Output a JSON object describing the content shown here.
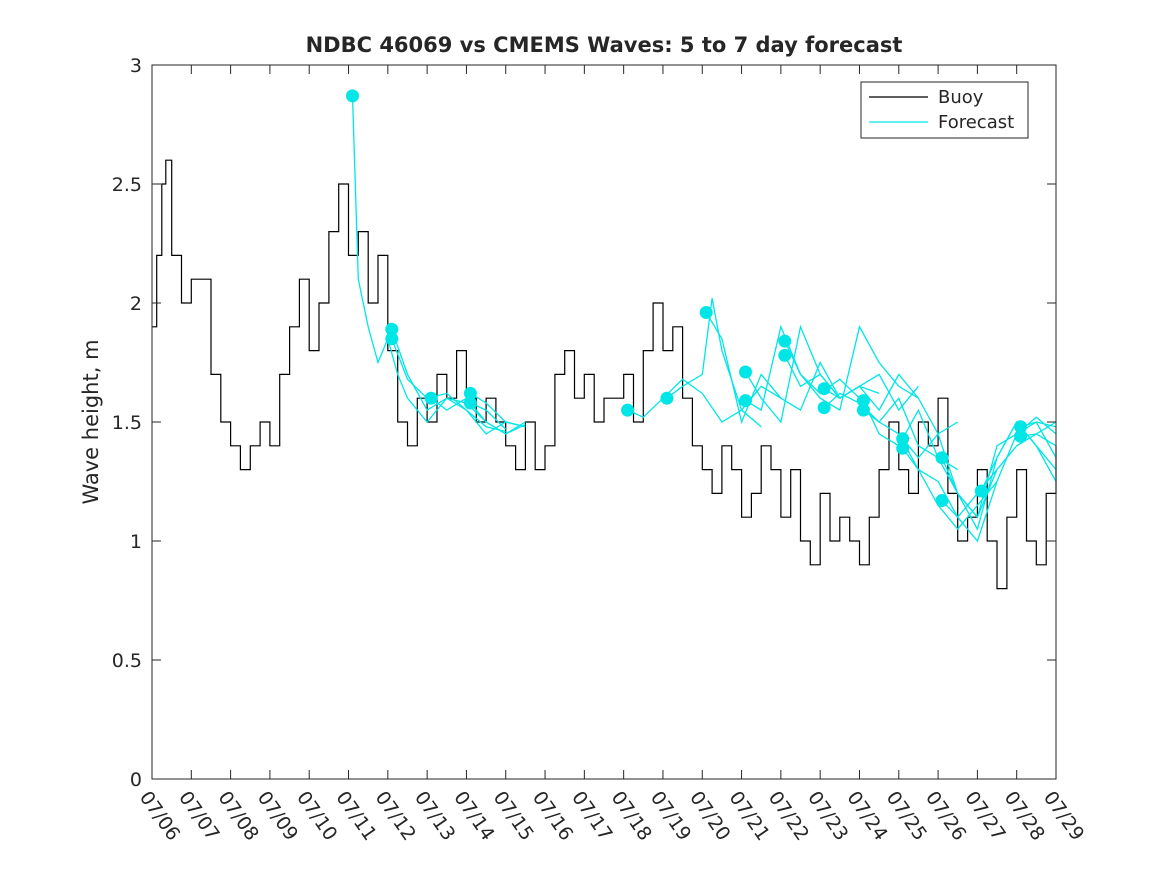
{
  "chart_data": {
    "type": "line",
    "title": "NDBC 46069 vs CMEMS Waves: 5 to 7 day forecast",
    "xlabel": "",
    "ylabel": "Wave height, m",
    "xlim": [
      "07/06",
      "07/29"
    ],
    "ylim": [
      0,
      3
    ],
    "yticks": [
      "0",
      "0.5",
      "1",
      "1.5",
      "2",
      "2.5",
      "3"
    ],
    "xticks": [
      "07/06",
      "07/07",
      "07/08",
      "07/09",
      "07/10",
      "07/11",
      "07/12",
      "07/13",
      "07/14",
      "07/15",
      "07/16",
      "07/17",
      "07/18",
      "07/19",
      "07/20",
      "07/21",
      "07/22",
      "07/23",
      "07/24",
      "07/25",
      "07/26",
      "07/27",
      "07/28",
      "07/29"
    ],
    "legend": {
      "position": "top-right",
      "entries": [
        "Buoy",
        "Forecast"
      ]
    },
    "colors": {
      "buoy": "#000000",
      "forecast": "#00e6e6",
      "axis": "#262626"
    },
    "series": [
      {
        "name": "Buoy",
        "color": "#000000",
        "x_days": [
          0.0,
          0.12,
          0.25,
          0.35,
          0.5,
          0.75,
          1.0,
          1.25,
          1.5,
          1.75,
          2.0,
          2.25,
          2.5,
          2.75,
          3.0,
          3.25,
          3.5,
          3.75,
          4.0,
          4.25,
          4.5,
          4.75,
          5.0,
          5.25,
          5.5,
          5.75,
          6.0,
          6.25,
          6.5,
          6.75,
          7.0,
          7.25,
          7.5,
          7.75,
          8.0,
          8.25,
          8.5,
          8.75,
          9.0,
          9.25,
          9.5,
          9.75,
          10.0,
          10.25,
          10.5,
          10.75,
          11.0,
          11.25,
          11.5,
          11.75,
          12.0,
          12.25,
          12.5,
          12.75,
          13.0,
          13.25,
          13.5,
          13.75,
          14.0,
          14.25,
          14.5,
          14.75,
          15.0,
          15.25,
          15.5,
          15.75,
          16.0,
          16.25,
          16.5,
          16.75,
          17.0,
          17.25,
          17.5,
          17.75,
          18.0,
          18.25,
          18.5,
          18.75,
          19.0,
          19.25,
          19.5,
          19.75,
          20.0,
          20.25,
          20.5,
          20.75,
          21.0,
          21.25,
          21.5,
          21.75,
          22.0,
          22.25,
          22.5,
          22.75,
          23.0
        ],
        "values": [
          1.9,
          2.2,
          2.5,
          2.6,
          2.2,
          2.0,
          2.1,
          2.1,
          1.7,
          1.5,
          1.4,
          1.3,
          1.4,
          1.5,
          1.4,
          1.7,
          1.9,
          2.1,
          1.8,
          2.0,
          2.3,
          2.5,
          2.2,
          2.3,
          2.0,
          2.2,
          1.8,
          1.5,
          1.4,
          1.6,
          1.5,
          1.7,
          1.6,
          1.8,
          1.6,
          1.5,
          1.6,
          1.5,
          1.4,
          1.3,
          1.5,
          1.3,
          1.4,
          1.7,
          1.8,
          1.6,
          1.7,
          1.5,
          1.6,
          1.6,
          1.7,
          1.5,
          1.8,
          2.0,
          1.8,
          1.9,
          1.6,
          1.4,
          1.3,
          1.2,
          1.4,
          1.3,
          1.1,
          1.2,
          1.4,
          1.3,
          1.1,
          1.3,
          1.0,
          0.9,
          1.2,
          1.0,
          1.1,
          1.0,
          0.9,
          1.1,
          1.3,
          1.5,
          1.3,
          1.2,
          1.5,
          1.4,
          1.6,
          1.2,
          1.0,
          1.1,
          1.3,
          1.0,
          0.8,
          1.1,
          1.3,
          1.0,
          0.9,
          1.2,
          1.4
        ]
      },
      {
        "name": "Forecast",
        "color": "#00e6e6",
        "runs": [
          {
            "x_days": [
              5.1,
              5.25,
              5.5,
              5.75,
              6.0,
              6.25,
              6.5,
              7.0,
              7.5,
              8.0,
              8.5,
              9.0,
              9.5
            ],
            "values": [
              2.87,
              2.1,
              1.9,
              1.75,
              1.85,
              1.7,
              1.6,
              1.5,
              1.6,
              1.55,
              1.45,
              1.5,
              1.48
            ]
          },
          {
            "x_days": [
              6.1,
              6.5,
              7.0,
              7.5,
              8.0,
              8.5,
              9.0,
              9.5
            ],
            "values": [
              1.89,
              1.7,
              1.55,
              1.6,
              1.58,
              1.5,
              1.45,
              1.49
            ]
          },
          {
            "x_days": [
              6.1,
              6.5,
              7.0,
              7.5,
              8.0,
              8.5,
              9.0
            ],
            "values": [
              1.85,
              1.68,
              1.6,
              1.62,
              1.55,
              1.48,
              1.46
            ]
          },
          {
            "x_days": [
              7.1,
              7.5,
              8.0,
              8.5,
              9.0,
              9.5
            ],
            "values": [
              1.6,
              1.55,
              1.6,
              1.5,
              1.45,
              1.5
            ]
          },
          {
            "x_days": [
              8.1,
              8.5,
              9.0,
              9.5
            ],
            "values": [
              1.62,
              1.58,
              1.5,
              1.48
            ]
          },
          {
            "x_days": [
              8.1,
              8.5,
              9.0
            ],
            "values": [
              1.58,
              1.55,
              1.47
            ]
          },
          {
            "x_days": [
              12.1,
              12.5,
              13.0,
              13.5,
              14.0,
              14.5,
              15.0,
              15.5
            ],
            "values": [
              1.55,
              1.52,
              1.6,
              1.68,
              1.62,
              1.5,
              1.55,
              1.48
            ]
          },
          {
            "x_days": [
              13.1,
              13.5,
              14.0,
              14.25,
              14.5,
              15.0,
              15.5,
              16.0
            ],
            "values": [
              1.6,
              1.65,
              1.7,
              2.02,
              1.8,
              1.55,
              1.65,
              1.6
            ]
          },
          {
            "x_days": [
              14.1,
              14.5,
              15.0,
              15.5,
              16.0,
              16.5,
              17.0,
              17.5
            ],
            "values": [
              1.96,
              1.85,
              1.5,
              1.7,
              1.6,
              1.55,
              1.75,
              1.6
            ]
          },
          {
            "x_days": [
              15.1,
              15.5,
              16.0,
              16.5,
              17.0,
              17.5,
              18.0,
              18.5
            ],
            "values": [
              1.71,
              1.6,
              1.5,
              1.9,
              1.7,
              1.6,
              1.65,
              1.62
            ]
          },
          {
            "x_days": [
              15.1,
              15.5,
              16.0,
              16.5,
              17.0,
              17.5,
              18.0
            ],
            "values": [
              1.59,
              1.55,
              1.9,
              1.7,
              1.62,
              1.68,
              1.6
            ]
          },
          {
            "x_days": [
              16.1,
              16.5,
              17.0,
              17.5,
              18.0,
              18.5,
              19.0,
              19.5
            ],
            "values": [
              1.84,
              1.7,
              1.6,
              1.55,
              1.9,
              1.75,
              1.65,
              1.6
            ]
          },
          {
            "x_days": [
              16.1,
              16.5,
              17.0,
              17.5,
              18.0,
              18.5,
              19.0,
              19.5
            ],
            "values": [
              1.78,
              1.65,
              1.7,
              1.6,
              1.65,
              1.7,
              1.55,
              1.65
            ]
          },
          {
            "x_days": [
              17.1,
              17.5,
              18.0,
              18.5,
              19.0,
              19.5,
              20.0,
              20.5
            ],
            "values": [
              1.64,
              1.6,
              1.65,
              1.55,
              1.7,
              1.6,
              1.45,
              1.5
            ]
          },
          {
            "x_days": [
              17.1,
              17.5,
              18.0,
              18.5,
              19.0,
              19.5,
              20.0,
              20.5
            ],
            "values": [
              1.56,
              1.62,
              1.58,
              1.5,
              1.6,
              1.4,
              1.35,
              1.3
            ]
          },
          {
            "x_days": [
              18.1,
              18.5,
              19.0,
              19.5,
              20.0,
              20.5,
              21.0,
              21.5
            ],
            "values": [
              1.59,
              1.45,
              1.4,
              1.55,
              1.35,
              1.2,
              1.1,
              1.3
            ]
          },
          {
            "x_days": [
              18.1,
              18.5,
              19.0,
              19.5,
              20.0,
              20.5,
              21.0,
              21.5
            ],
            "values": [
              1.55,
              1.5,
              1.45,
              1.3,
              1.15,
              1.05,
              1.15,
              1.25
            ]
          },
          {
            "x_days": [
              19.1,
              19.5,
              20.0,
              20.5,
              21.0,
              21.5,
              22.0,
              22.5,
              23.0
            ],
            "values": [
              1.43,
              1.35,
              1.45,
              1.2,
              1.05,
              1.35,
              1.5,
              1.4,
              1.3
            ]
          },
          {
            "x_days": [
              19.1,
              19.5,
              20.0,
              20.5,
              21.0,
              21.5,
              22.0,
              22.5,
              23.0
            ],
            "values": [
              1.39,
              1.3,
              1.25,
              1.1,
              1.0,
              1.25,
              1.45,
              1.5,
              1.35
            ]
          },
          {
            "x_days": [
              20.1,
              20.5,
              21.0,
              21.5,
              22.0,
              22.5,
              23.0
            ],
            "values": [
              1.35,
              1.2,
              1.1,
              1.4,
              1.45,
              1.52,
              1.45
            ]
          },
          {
            "x_days": [
              20.1,
              20.5,
              21.0,
              21.5,
              22.0,
              22.5,
              23.0
            ],
            "values": [
              1.17,
              1.1,
              1.2,
              1.3,
              1.4,
              1.45,
              1.5
            ]
          },
          {
            "x_days": [
              21.1,
              21.5,
              22.0,
              22.5,
              23.0
            ],
            "values": [
              1.21,
              1.35,
              1.5,
              1.4,
              1.25
            ]
          },
          {
            "x_days": [
              22.1,
              22.5,
              23.0
            ],
            "values": [
              1.48,
              1.5,
              1.48
            ]
          },
          {
            "x_days": [
              22.1,
              22.5,
              23.0
            ],
            "values": [
              1.44,
              1.45,
              1.4
            ]
          }
        ],
        "markers": {
          "x_days": [
            5.1,
            6.1,
            6.1,
            7.1,
            8.1,
            8.1,
            12.1,
            13.1,
            14.1,
            15.1,
            15.1,
            16.1,
            16.1,
            17.1,
            17.1,
            18.1,
            18.1,
            19.1,
            19.1,
            20.1,
            20.1,
            21.1,
            22.1,
            22.1
          ],
          "values": [
            2.87,
            1.89,
            1.85,
            1.6,
            1.62,
            1.58,
            1.55,
            1.6,
            1.96,
            1.71,
            1.59,
            1.84,
            1.78,
            1.64,
            1.56,
            1.59,
            1.55,
            1.43,
            1.39,
            1.35,
            1.17,
            1.21,
            1.48,
            1.44
          ]
        }
      }
    ]
  }
}
